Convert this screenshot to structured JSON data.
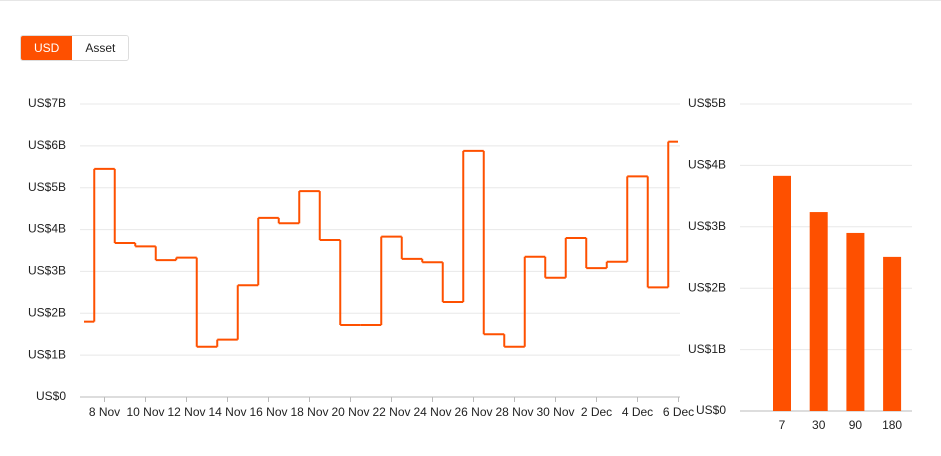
{
  "toggle": [
    "USD",
    "Asset"
  ],
  "chart_data": [
    {
      "type": "step",
      "color": "#fe5000",
      "grid": true,
      "categories": [
        null,
        "8 Nov",
        null,
        "10 Nov",
        null,
        "12 Nov",
        null,
        "14 Nov",
        null,
        "16 Nov",
        null,
        "18 Nov",
        null,
        "20 Nov",
        null,
        "22 Nov",
        null,
        "24 Nov",
        null,
        "26 Nov",
        null,
        "28 Nov",
        null,
        "30 Nov",
        null,
        "2 Dec",
        null,
        "4 Dec",
        null,
        "6 Dec"
      ],
      "values": [
        1.8,
        5.45,
        3.68,
        3.6,
        3.27,
        3.33,
        1.2,
        1.37,
        2.67,
        4.28,
        4.15,
        4.92,
        3.75,
        1.72,
        1.72,
        3.83,
        3.3,
        3.22,
        2.27,
        5.88,
        1.5,
        1.2,
        3.35,
        2.85,
        3.8,
        3.08,
        3.23,
        5.27,
        2.62,
        6.1
      ],
      "ylim": [
        0,
        7
      ],
      "yticks": [
        {
          "value": 0,
          "label": "US$0"
        },
        {
          "value": 1,
          "label": "US$1B"
        },
        {
          "value": 2,
          "label": "US$2B"
        },
        {
          "value": 3,
          "label": "US$3B"
        },
        {
          "value": 4,
          "label": "US$4B"
        },
        {
          "value": 5,
          "label": "US$5B"
        },
        {
          "value": 6,
          "label": "US$6B"
        },
        {
          "value": 7,
          "label": "US$7B"
        }
      ]
    },
    {
      "type": "bar",
      "color": "#fe5000",
      "grid": true,
      "categories": [
        "7",
        "30",
        "90",
        "180"
      ],
      "values": [
        3.83,
        3.24,
        2.9,
        2.51
      ],
      "ylim": [
        0,
        5
      ],
      "yticks": [
        {
          "value": 0,
          "label": "US$0"
        },
        {
          "value": 1,
          "label": "US$1B"
        },
        {
          "value": 2,
          "label": "US$2B"
        },
        {
          "value": 3,
          "label": "US$3B"
        },
        {
          "value": 4,
          "label": "US$4B"
        },
        {
          "value": 5,
          "label": "US$5B"
        }
      ]
    }
  ]
}
